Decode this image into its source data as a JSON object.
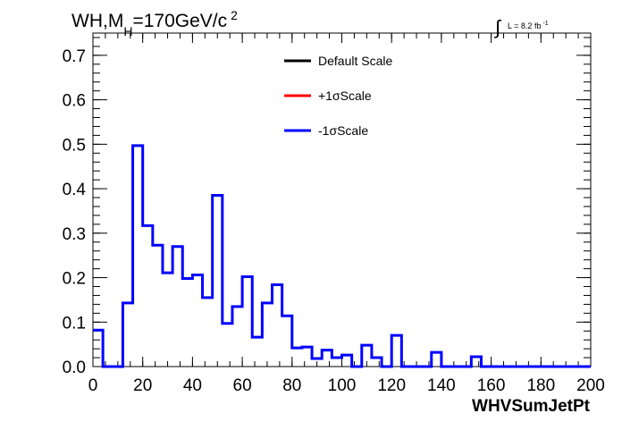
{
  "chart_data": {
    "type": "line",
    "title_parts": {
      "pre": "WH,M",
      "sub": "H",
      "mid": "=170GeV/c",
      "sup": "2"
    },
    "lumi_label": {
      "integral": "∫",
      "text": "L = 8.2 fb",
      "sup": "-1"
    },
    "xlabel": "WHVSumJetPt",
    "ylabel": "",
    "xlim": [
      0,
      200
    ],
    "ylim": [
      0,
      0.75
    ],
    "x_ticks": [
      "0",
      "20",
      "40",
      "60",
      "80",
      "100",
      "120",
      "140",
      "160",
      "180",
      "200"
    ],
    "y_ticks": [
      "0.0",
      "0.1",
      "0.2",
      "0.3",
      "0.4",
      "0.5",
      "0.6",
      "0.7"
    ],
    "grid": false,
    "legend_position": "top-center",
    "bin_width": 4,
    "bin_edges_start": 0,
    "series": [
      {
        "name": "Default Scale",
        "color": "#000000",
        "draw": false,
        "values": []
      },
      {
        "name": "+1σScale",
        "color": "#ff0000",
        "draw": false,
        "values": []
      },
      {
        "name": "-1σScale",
        "color": "#0000ff",
        "draw": true,
        "values": [
          0.082,
          0,
          0,
          0.143,
          0.497,
          0.317,
          0.273,
          0.211,
          0.27,
          0.198,
          0.206,
          0.155,
          0.385,
          0.097,
          0.135,
          0.202,
          0.066,
          0.143,
          0.184,
          0.114,
          0.042,
          0.044,
          0.018,
          0.037,
          0.02,
          0.026,
          0,
          0.048,
          0.02,
          0,
          0.07,
          0,
          0,
          0,
          0.032,
          0,
          0,
          0,
          0.022,
          0,
          0,
          0,
          0,
          0,
          0,
          0,
          0,
          0,
          0,
          0
        ]
      }
    ]
  }
}
